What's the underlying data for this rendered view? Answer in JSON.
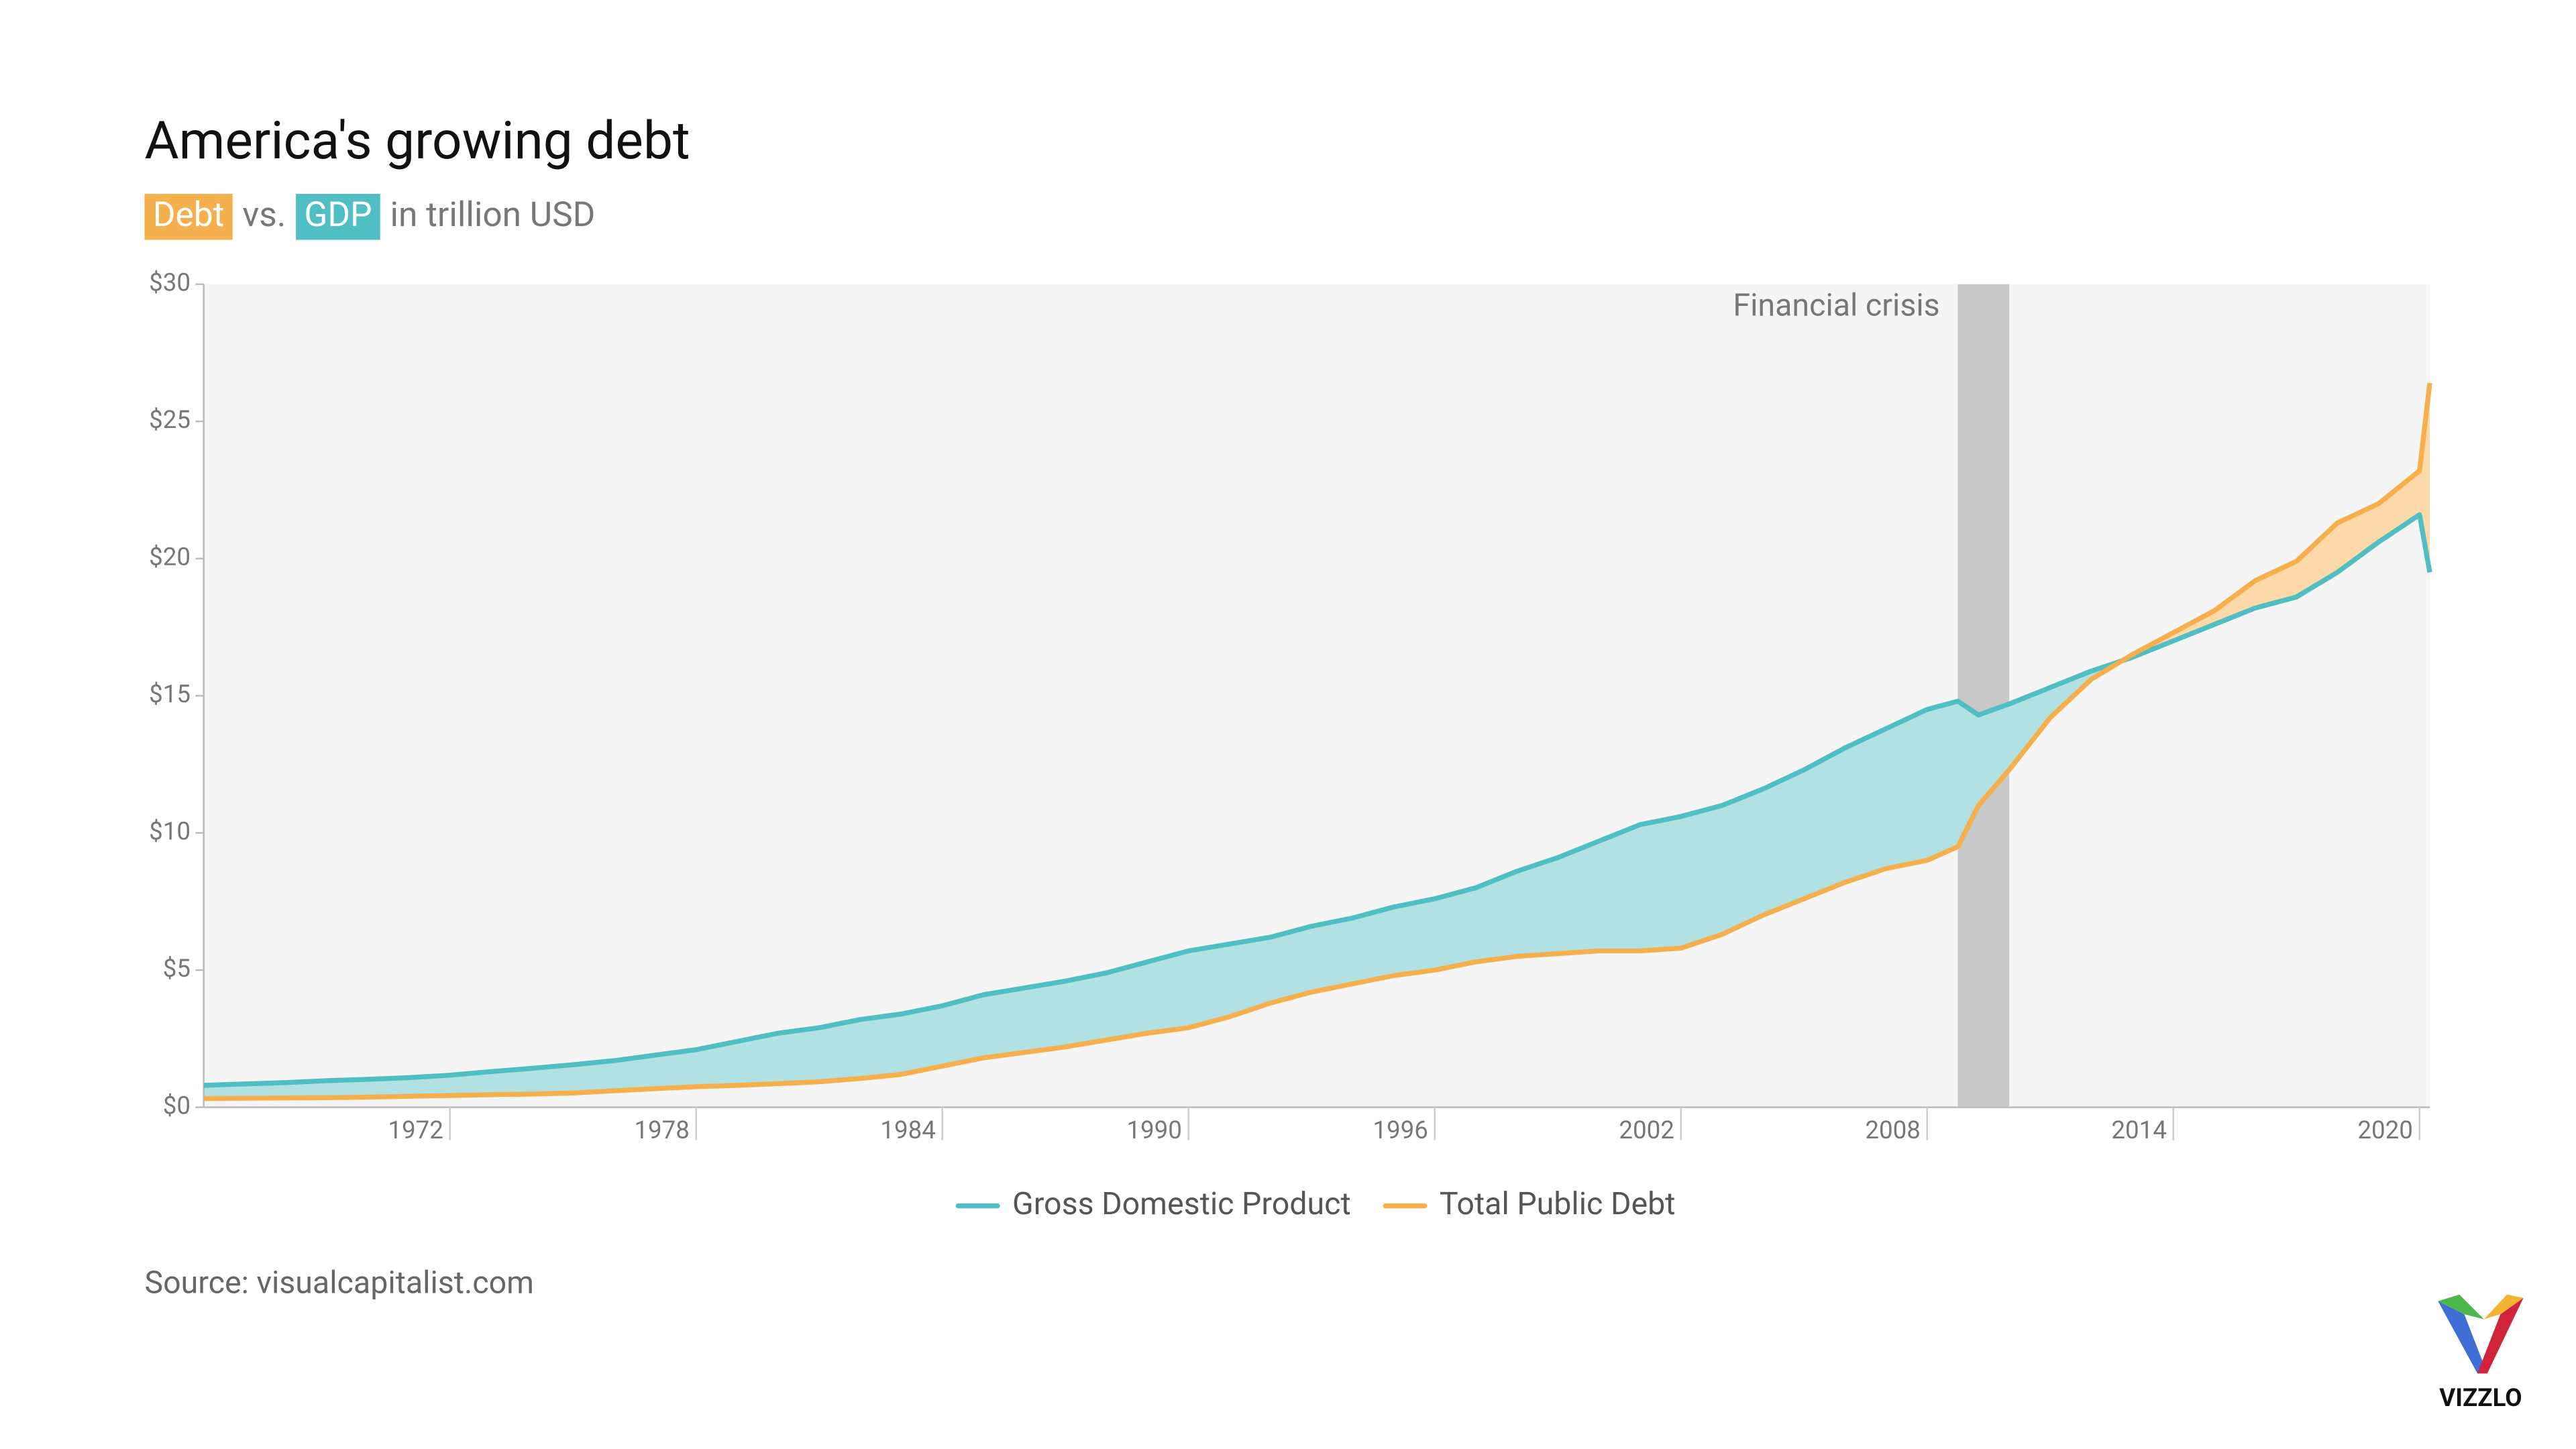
{
  "chart_data": {
    "type": "line",
    "title": "America's growing debt",
    "subtitle": {
      "debt_badge": "Debt",
      "vs": "vs.",
      "gdp_badge": "GDP",
      "unit": "in trillion USD"
    },
    "x": [
      1966,
      1967,
      1968,
      1969,
      1970,
      1971,
      1972,
      1973,
      1974,
      1975,
      1976,
      1977,
      1978,
      1979,
      1980,
      1981,
      1982,
      1983,
      1984,
      1985,
      1986,
      1987,
      1988,
      1989,
      1990,
      1991,
      1992,
      1993,
      1994,
      1995,
      1996,
      1997,
      1998,
      1999,
      2000,
      2001,
      2002,
      2003,
      2004,
      2005,
      2006,
      2007,
      2008,
      2008.75,
      2009.25,
      2010,
      2011,
      2012,
      2013,
      2014,
      2015,
      2016,
      2017,
      2018,
      2019,
      2020,
      2020.25
    ],
    "series": [
      {
        "name": "Gross Domestic Product",
        "color": "#4fbfc4",
        "fill": "#b1e1e3",
        "values": [
          0.8,
          0.85,
          0.9,
          0.97,
          1.02,
          1.08,
          1.17,
          1.3,
          1.42,
          1.55,
          1.7,
          1.9,
          2.1,
          2.4,
          2.7,
          2.9,
          3.2,
          3.4,
          3.7,
          4.1,
          4.35,
          4.6,
          4.9,
          5.3,
          5.7,
          5.95,
          6.2,
          6.6,
          6.9,
          7.3,
          7.6,
          8.0,
          8.6,
          9.1,
          9.7,
          10.3,
          10.6,
          11.0,
          11.6,
          12.3,
          13.1,
          13.8,
          14.5,
          14.8,
          14.3,
          14.7,
          15.3,
          15.9,
          16.4,
          17.0,
          17.6,
          18.2,
          18.6,
          19.5,
          20.6,
          21.6,
          19.5
        ]
      },
      {
        "name": "Total Public Debt",
        "color": "#f5b04d",
        "fill": "#fbd9a8",
        "values": [
          0.32,
          0.33,
          0.34,
          0.35,
          0.37,
          0.4,
          0.43,
          0.46,
          0.48,
          0.52,
          0.6,
          0.68,
          0.75,
          0.8,
          0.86,
          0.93,
          1.05,
          1.2,
          1.5,
          1.8,
          2.0,
          2.2,
          2.45,
          2.7,
          2.9,
          3.3,
          3.8,
          4.2,
          4.5,
          4.8,
          5.0,
          5.3,
          5.5,
          5.6,
          5.7,
          5.7,
          5.8,
          6.3,
          7.0,
          7.6,
          8.2,
          8.7,
          9.0,
          9.5,
          11.0,
          12.3,
          14.2,
          15.6,
          16.5,
          17.3,
          18.1,
          19.2,
          19.9,
          21.3,
          22.0,
          23.2,
          26.4
        ]
      }
    ],
    "xlim": [
      1966,
      2020.25
    ],
    "xticks": [
      1972,
      1978,
      1984,
      1990,
      1996,
      2002,
      2008,
      2014,
      2020
    ],
    "ylim": [
      0,
      30
    ],
    "yticks": [
      {
        "value": 0,
        "label": "$0"
      },
      {
        "value": 5,
        "label": "$5"
      },
      {
        "value": 10,
        "label": "$10"
      },
      {
        "value": 15,
        "label": "$15"
      },
      {
        "value": 20,
        "label": "$20"
      },
      {
        "value": 25,
        "label": "$25"
      },
      {
        "value": 30,
        "label": "$30"
      }
    ],
    "shade": {
      "label": "Financial crisis",
      "range": [
        2008.75,
        2010
      ],
      "color": "#c8c8c8"
    },
    "plot_background": "#f5f5f5",
    "source": "Source: visualcapitalist.com",
    "logo": "VIZZLO"
  }
}
